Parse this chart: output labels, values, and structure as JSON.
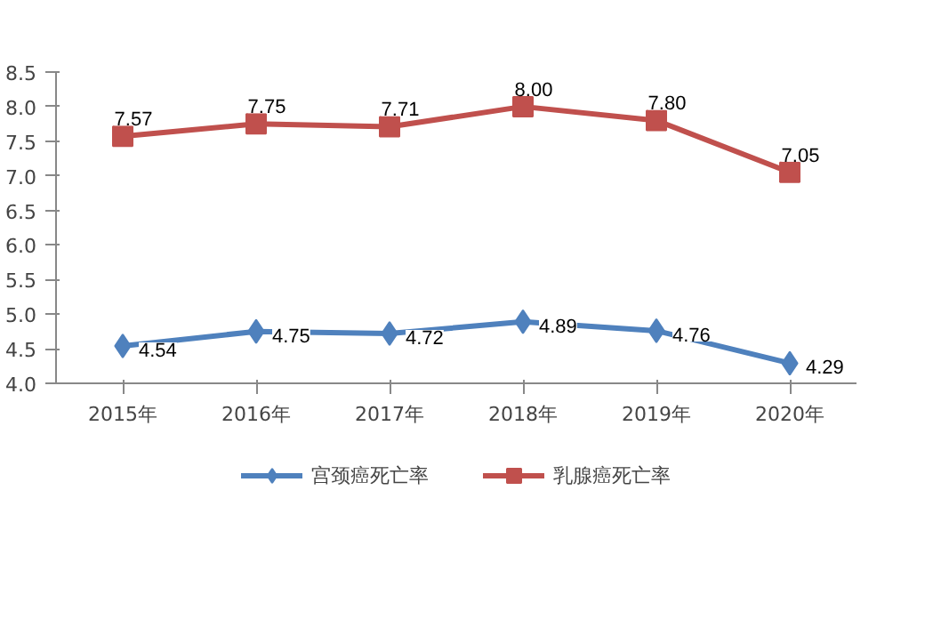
{
  "chart_data": {
    "type": "line",
    "categories": [
      "2015年",
      "2016年",
      "2017年",
      "2018年",
      "2019年",
      "2020年"
    ],
    "series": [
      {
        "name": "宫颈癌死亡率",
        "color": "#4f81bd",
        "marker": "diamond",
        "values": [
          4.54,
          4.75,
          4.72,
          4.89,
          4.76,
          4.29
        ]
      },
      {
        "name": "乳腺癌死亡率",
        "color": "#c0504d",
        "marker": "square",
        "values": [
          7.57,
          7.75,
          7.71,
          8.0,
          7.8,
          7.05
        ]
      }
    ],
    "ylim": [
      4.0,
      8.5
    ],
    "yticks": [
      {
        "value": 4.0,
        "label": "4.0"
      },
      {
        "value": 4.5,
        "label": "4.5"
      },
      {
        "value": 5.0,
        "label": "5.0"
      },
      {
        "value": 5.5,
        "label": "5.5"
      },
      {
        "value": 6.0,
        "label": "6.0"
      },
      {
        "value": 6.5,
        "label": "6.5"
      },
      {
        "value": 7.0,
        "label": "7.0"
      },
      {
        "value": 7.5,
        "label": "7.5"
      },
      {
        "value": 8.0,
        "label": "8.0"
      },
      {
        "value": 8.5,
        "label": "8.5"
      }
    ],
    "value_labels": [
      [
        "4.54",
        "4.75",
        "4.72",
        "4.89",
        "4.76",
        "4.29"
      ],
      [
        "7.57",
        "7.75",
        "7.71",
        "8.00",
        "7.80",
        "7.05"
      ]
    ],
    "grid": false,
    "legend": "bottom",
    "line_style": "solid"
  }
}
